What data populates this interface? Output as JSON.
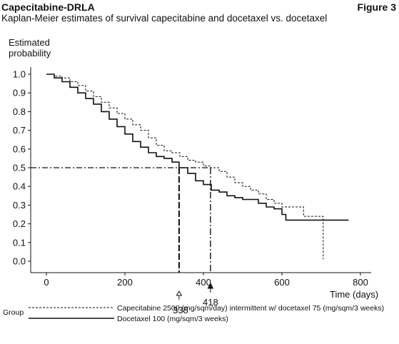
{
  "header": {
    "title": "Capecitabine-DRLA",
    "figure": "Figure 3",
    "subtitle": "Kaplan-Meier estimates of survival capecitabine and docetaxel vs. docetaxel"
  },
  "chart_data": {
    "type": "line",
    "title": "",
    "ylabel_lines": [
      "Estimated",
      "probability"
    ],
    "xlabel": "Time (days)",
    "xlim": [
      0,
      800
    ],
    "ylim": [
      0,
      1.0
    ],
    "xticks": [
      0,
      200,
      400,
      600,
      800
    ],
    "xtick_labels": [
      "0",
      "200",
      "400",
      "600",
      "800"
    ],
    "yticks": [
      0.0,
      0.1,
      0.2,
      0.3,
      0.4,
      0.5,
      0.6,
      0.7,
      0.8,
      0.9,
      1.0
    ],
    "ytick_labels": [
      "0.0",
      "0.1",
      "0.2",
      "0.3",
      "0.4",
      "0.5",
      "0.6",
      "0.7",
      "0.8",
      "0.9",
      "1.0"
    ],
    "grid": false,
    "legend_title": "Group",
    "legend_position": "bottom",
    "series": [
      {
        "name": "Capecitabine 2500 (mg/sqm/day) intermittent w/ docetaxel 75 (mg/sqm/3 weeks)",
        "style": "dashed",
        "points": [
          [
            0,
            1.0
          ],
          [
            20,
            0.99
          ],
          [
            40,
            0.98
          ],
          [
            60,
            0.96
          ],
          [
            80,
            0.94
          ],
          [
            100,
            0.91
          ],
          [
            120,
            0.88
          ],
          [
            140,
            0.85
          ],
          [
            160,
            0.82
          ],
          [
            180,
            0.79
          ],
          [
            200,
            0.76
          ],
          [
            220,
            0.73
          ],
          [
            240,
            0.7
          ],
          [
            260,
            0.66
          ],
          [
            280,
            0.62
          ],
          [
            300,
            0.59
          ],
          [
            320,
            0.58
          ],
          [
            340,
            0.56
          ],
          [
            360,
            0.54
          ],
          [
            380,
            0.53
          ],
          [
            400,
            0.51
          ],
          [
            418,
            0.5
          ],
          [
            440,
            0.48
          ],
          [
            460,
            0.45
          ],
          [
            480,
            0.42
          ],
          [
            500,
            0.4
          ],
          [
            520,
            0.38
          ],
          [
            540,
            0.36
          ],
          [
            560,
            0.33
          ],
          [
            580,
            0.31
          ],
          [
            600,
            0.29
          ],
          [
            620,
            0.29
          ],
          [
            650,
            0.29
          ],
          [
            655,
            0.24
          ],
          [
            700,
            0.24
          ],
          [
            705,
            0.01
          ]
        ]
      },
      {
        "name": "Docetaxel 100 (mg/sqm/3 weeks)",
        "style": "solid",
        "points": [
          [
            0,
            1.0
          ],
          [
            20,
            0.98
          ],
          [
            40,
            0.96
          ],
          [
            60,
            0.93
          ],
          [
            80,
            0.9
          ],
          [
            100,
            0.87
          ],
          [
            120,
            0.84
          ],
          [
            140,
            0.8
          ],
          [
            160,
            0.76
          ],
          [
            180,
            0.72
          ],
          [
            200,
            0.68
          ],
          [
            220,
            0.64
          ],
          [
            240,
            0.61
          ],
          [
            260,
            0.58
          ],
          [
            280,
            0.56
          ],
          [
            300,
            0.55
          ],
          [
            320,
            0.53
          ],
          [
            338,
            0.5
          ],
          [
            360,
            0.47
          ],
          [
            380,
            0.43
          ],
          [
            400,
            0.41
          ],
          [
            420,
            0.38
          ],
          [
            440,
            0.37
          ],
          [
            460,
            0.35
          ],
          [
            480,
            0.34
          ],
          [
            500,
            0.33
          ],
          [
            520,
            0.33
          ],
          [
            540,
            0.31
          ],
          [
            560,
            0.29
          ],
          [
            580,
            0.28
          ],
          [
            600,
            0.25
          ],
          [
            610,
            0.22
          ],
          [
            640,
            0.22
          ],
          [
            680,
            0.22
          ],
          [
            720,
            0.22
          ],
          [
            770,
            0.22
          ]
        ]
      }
    ],
    "reference": {
      "y": 0.5,
      "medians": [
        338,
        418
      ],
      "median_labels": [
        "338",
        "418"
      ]
    }
  }
}
